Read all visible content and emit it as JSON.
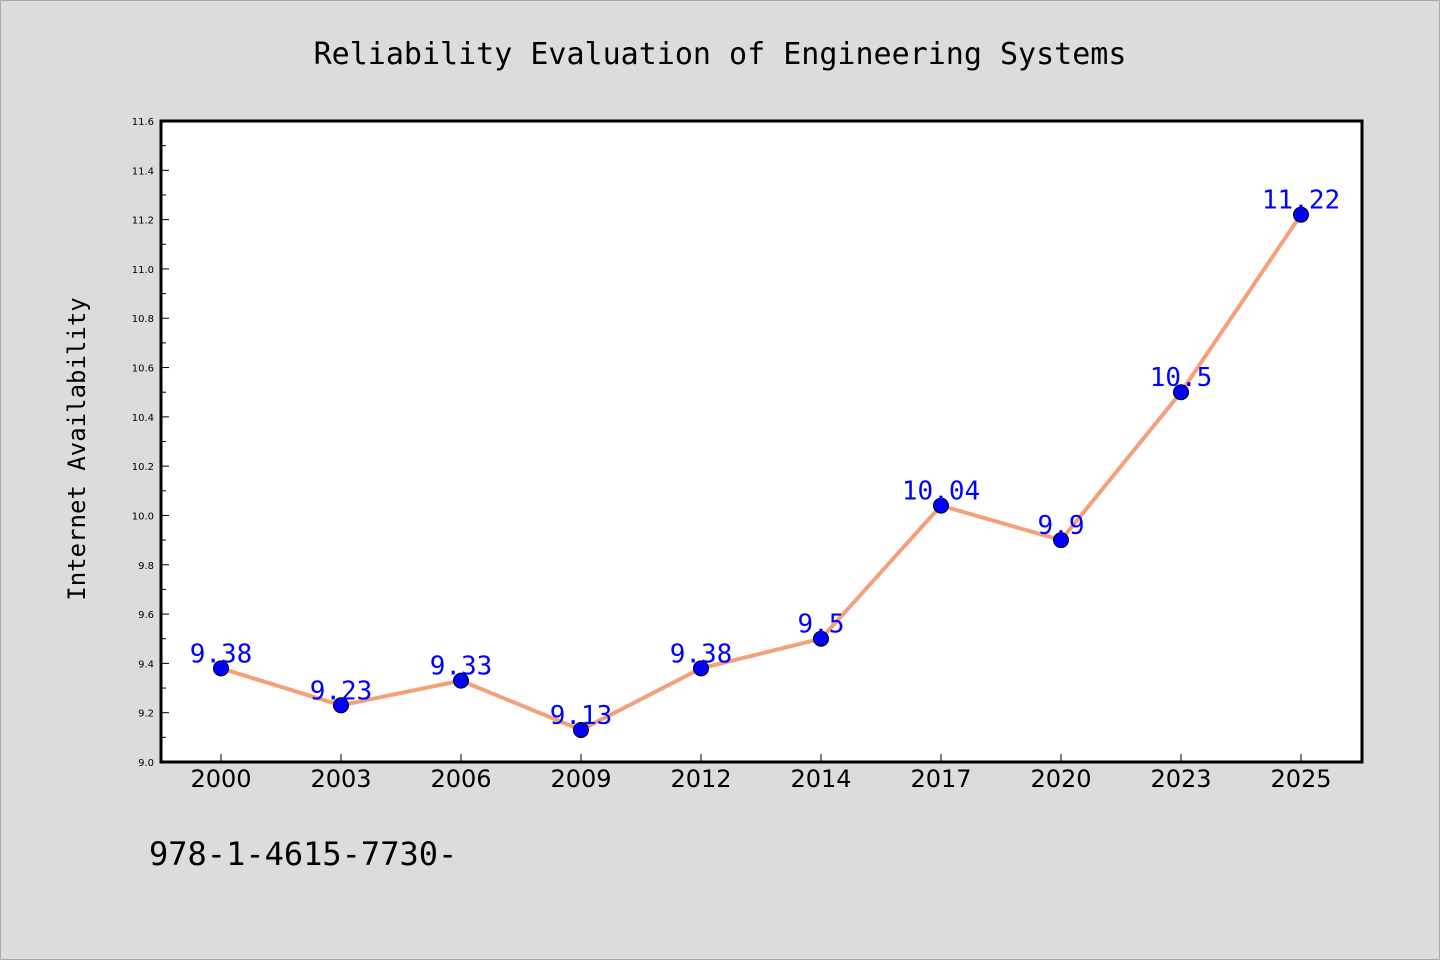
{
  "chart_data": {
    "type": "line",
    "title": "Reliability Evaluation of Engineering Systems",
    "xlabel": "",
    "ylabel": "Internet Availability",
    "categories": [
      "2000",
      "2003",
      "2006",
      "2009",
      "2012",
      "2014",
      "2017",
      "2020",
      "2023",
      "2025"
    ],
    "series": [
      {
        "values": [
          9.38,
          9.23,
          9.33,
          9.13,
          9.38,
          9.5,
          10.04,
          9.9,
          10.5,
          11.22
        ],
        "data_labels": [
          "9.38",
          "9.23",
          "9.33",
          "9.13",
          "9.38",
          "9.5",
          "10.04",
          "9.9",
          "10.5",
          "11.22"
        ]
      }
    ],
    "ylim": [
      9.0,
      11.6
    ],
    "yticks": [
      "9.0",
      "9.2",
      "9.4",
      "9.6",
      "9.8",
      "10.0",
      "10.2",
      "10.4",
      "10.6",
      "10.8",
      "11.0",
      "11.2",
      "11.4",
      "11.6"
    ],
    "grid": false,
    "colors": {
      "line": "#f4a07a",
      "marker": "#0000ff",
      "data_label": "#0000ff"
    }
  },
  "footer_text": "978-1-4615-7730-"
}
